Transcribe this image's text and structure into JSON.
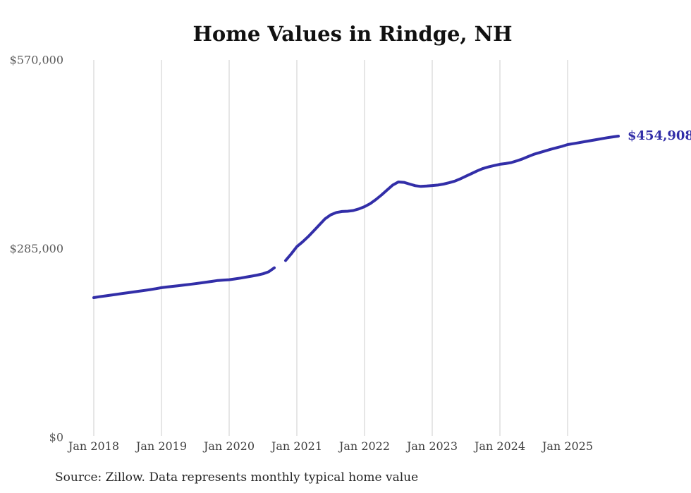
{
  "page": {
    "title": "Home Values in Rindge, NH"
  },
  "chart_data": {
    "type": "line",
    "title": "Home Values in Rindge, NH",
    "xlabel": "",
    "ylabel": "",
    "ylim": [
      0,
      570000
    ],
    "grid": "vertical-only",
    "legend": "none",
    "line_color": "#322ea8",
    "grid_color": "#cccccc",
    "end_label": "$454,908",
    "end_value": 454908,
    "source_note": "Source: Zillow. Data represents monthly typical home value",
    "yticks": [
      {
        "label": "$570,000",
        "value": 570000
      },
      {
        "label": "$285,000",
        "value": 285000
      },
      {
        "label": "$0",
        "value": 0
      }
    ],
    "xticks": [
      {
        "label": "Jan 2018",
        "month": "2018-01"
      },
      {
        "label": "Jan 2019",
        "month": "2019-01"
      },
      {
        "label": "Jan 2020",
        "month": "2020-01"
      },
      {
        "label": "Jan 2021",
        "month": "2021-01"
      },
      {
        "label": "Jan 2022",
        "month": "2022-01"
      },
      {
        "label": "Jan 2023",
        "month": "2023-01"
      },
      {
        "label": "Jan 2024",
        "month": "2024-01"
      },
      {
        "label": "Jan 2025",
        "month": "2025-01"
      }
    ],
    "series": [
      {
        "name": "Monthly typical home value",
        "points": [
          [
            "2018-01",
            211000
          ],
          [
            "2018-02",
            212300
          ],
          [
            "2018-03",
            213500
          ],
          [
            "2018-04",
            214700
          ],
          [
            "2018-05",
            215900
          ],
          [
            "2018-06",
            217100
          ],
          [
            "2018-07",
            218300
          ],
          [
            "2018-08",
            219500
          ],
          [
            "2018-09",
            220600
          ],
          [
            "2018-10",
            221800
          ],
          [
            "2018-11",
            223100
          ],
          [
            "2018-12",
            224500
          ],
          [
            "2019-01",
            226000
          ],
          [
            "2019-02",
            227000
          ],
          [
            "2019-03",
            228000
          ],
          [
            "2019-04",
            229000
          ],
          [
            "2019-05",
            230000
          ],
          [
            "2019-06",
            231000
          ],
          [
            "2019-07",
            232000
          ],
          [
            "2019-08",
            233200
          ],
          [
            "2019-09",
            234400
          ],
          [
            "2019-10",
            235600
          ],
          [
            "2019-11",
            236800
          ],
          [
            "2019-12",
            237500
          ],
          [
            "2020-01",
            238000
          ],
          [
            "2020-02",
            239200
          ],
          [
            "2020-03",
            240500
          ],
          [
            "2020-04",
            242000
          ],
          [
            "2020-05",
            243500
          ],
          [
            "2020-06",
            245000
          ],
          [
            "2020-07",
            247000
          ],
          [
            "2020-08",
            250000
          ],
          [
            "2020-09",
            256000
          ],
          [
            "2020-10",
            null
          ],
          [
            "2020-11",
            267000
          ],
          [
            "2020-12",
            277000
          ],
          [
            "2021-01",
            288000
          ],
          [
            "2021-02",
            295000
          ],
          [
            "2021-03",
            303000
          ],
          [
            "2021-04",
            312000
          ],
          [
            "2021-05",
            321000
          ],
          [
            "2021-06",
            330000
          ],
          [
            "2021-07",
            336000
          ],
          [
            "2021-08",
            339500
          ],
          [
            "2021-09",
            341000
          ],
          [
            "2021-10",
            341500
          ],
          [
            "2021-11",
            342500
          ],
          [
            "2021-12",
            345000
          ],
          [
            "2022-01",
            348400
          ],
          [
            "2022-02",
            353000
          ],
          [
            "2022-03",
            359000
          ],
          [
            "2022-04",
            366000
          ],
          [
            "2022-05",
            373500
          ],
          [
            "2022-06",
            381000
          ],
          [
            "2022-07",
            385700
          ],
          [
            "2022-08",
            385000
          ],
          [
            "2022-09",
            382500
          ],
          [
            "2022-10",
            380000
          ],
          [
            "2022-11",
            379000
          ],
          [
            "2022-12",
            379500
          ],
          [
            "2023-01",
            380300
          ],
          [
            "2023-02",
            381000
          ],
          [
            "2023-03",
            382500
          ],
          [
            "2023-04",
            384500
          ],
          [
            "2023-05",
            387000
          ],
          [
            "2023-06",
            390500
          ],
          [
            "2023-07",
            394500
          ],
          [
            "2023-08",
            398500
          ],
          [
            "2023-09",
            402500
          ],
          [
            "2023-10",
            406000
          ],
          [
            "2023-11",
            408500
          ],
          [
            "2023-12",
            410500
          ],
          [
            "2024-01",
            412400
          ],
          [
            "2024-02",
            413500
          ],
          [
            "2024-03",
            415000
          ],
          [
            "2024-04",
            417500
          ],
          [
            "2024-05",
            420500
          ],
          [
            "2024-06",
            424000
          ],
          [
            "2024-07",
            427500
          ],
          [
            "2024-08",
            430000
          ],
          [
            "2024-09",
            432500
          ],
          [
            "2024-10",
            435000
          ],
          [
            "2024-11",
            437200
          ],
          [
            "2024-12",
            439500
          ],
          [
            "2025-01",
            442100
          ],
          [
            "2025-02",
            443500
          ],
          [
            "2025-03",
            445000
          ],
          [
            "2025-04",
            446500
          ],
          [
            "2025-05",
            448000
          ],
          [
            "2025-06",
            449500
          ],
          [
            "2025-07",
            451000
          ],
          [
            "2025-08",
            452500
          ],
          [
            "2025-09",
            453800
          ],
          [
            "2025-10",
            454908
          ]
        ]
      }
    ]
  }
}
